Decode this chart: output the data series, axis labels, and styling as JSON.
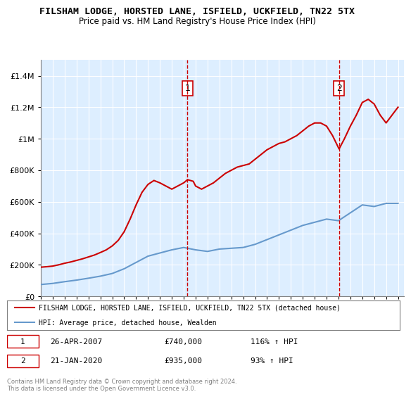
{
  "title": "FILSHAM LODGE, HORSTED LANE, ISFIELD, UCKFIELD, TN22 5TX",
  "subtitle": "Price paid vs. HM Land Registry's House Price Index (HPI)",
  "legend_line1": "FILSHAM LODGE, HORSTED LANE, ISFIELD, UCKFIELD, TN22 5TX (detached house)",
  "legend_line2": "HPI: Average price, detached house, Wealden",
  "footnote": "Contains HM Land Registry data © Crown copyright and database right 2024.\nThis data is licensed under the Open Government Licence v3.0.",
  "sale1_label": "1",
  "sale1_date": "26-APR-2007",
  "sale1_price": "£740,000",
  "sale1_hpi": "116% ↑ HPI",
  "sale2_label": "2",
  "sale2_date": "21-JAN-2020",
  "sale2_price": "£935,000",
  "sale2_hpi": "93% ↑ HPI",
  "red_color": "#cc0000",
  "blue_color": "#6699cc",
  "bg_color": "#ddeeff",
  "sale1_x": 2007.32,
  "sale2_x": 2020.05,
  "ylim": [
    0,
    1500000
  ],
  "xlim_start": 1995,
  "xlim_end": 2025.5,
  "hpi_years": [
    1995,
    1996,
    1997,
    1998,
    1999,
    2000,
    2001,
    2002,
    2003,
    2004,
    2005,
    2006,
    2007,
    2008,
    2009,
    2010,
    2011,
    2012,
    2013,
    2014,
    2015,
    2016,
    2017,
    2018,
    2019,
    2020,
    2021,
    2022,
    2023,
    2024,
    2025
  ],
  "hpi_values": [
    75000,
    82000,
    93000,
    103000,
    115000,
    128000,
    145000,
    175000,
    215000,
    255000,
    275000,
    295000,
    310000,
    295000,
    285000,
    300000,
    305000,
    310000,
    330000,
    360000,
    390000,
    420000,
    450000,
    470000,
    490000,
    480000,
    530000,
    580000,
    570000,
    590000,
    590000
  ],
  "price_years": [
    1995.0,
    1995.5,
    1996.0,
    1996.5,
    1997.0,
    1997.5,
    1998.0,
    1998.5,
    1999.0,
    1999.5,
    2000.0,
    2000.5,
    2001.0,
    2001.5,
    2002.0,
    2002.5,
    2003.0,
    2003.5,
    2004.0,
    2004.5,
    2005.0,
    2005.5,
    2006.0,
    2006.5,
    2007.0,
    2007.32,
    2007.8,
    2008.0,
    2008.5,
    2009.0,
    2009.5,
    2010.0,
    2010.5,
    2011.0,
    2011.5,
    2012.0,
    2012.5,
    2013.0,
    2013.5,
    2014.0,
    2014.5,
    2015.0,
    2015.5,
    2016.0,
    2016.5,
    2017.0,
    2017.5,
    2018.0,
    2018.5,
    2019.0,
    2019.5,
    2020.05,
    2020.5,
    2021.0,
    2021.5,
    2022.0,
    2022.5,
    2023.0,
    2023.5,
    2024.0,
    2024.5,
    2025.0
  ],
  "price_values": [
    185000,
    188000,
    192000,
    200000,
    210000,
    218000,
    228000,
    238000,
    250000,
    262000,
    278000,
    295000,
    320000,
    355000,
    410000,
    490000,
    580000,
    660000,
    710000,
    735000,
    720000,
    700000,
    680000,
    700000,
    720000,
    740000,
    730000,
    700000,
    680000,
    700000,
    720000,
    750000,
    780000,
    800000,
    820000,
    830000,
    840000,
    870000,
    900000,
    930000,
    950000,
    970000,
    980000,
    1000000,
    1020000,
    1050000,
    1080000,
    1100000,
    1100000,
    1080000,
    1020000,
    935000,
    1000000,
    1080000,
    1150000,
    1230000,
    1250000,
    1220000,
    1150000,
    1100000,
    1150000,
    1200000
  ]
}
